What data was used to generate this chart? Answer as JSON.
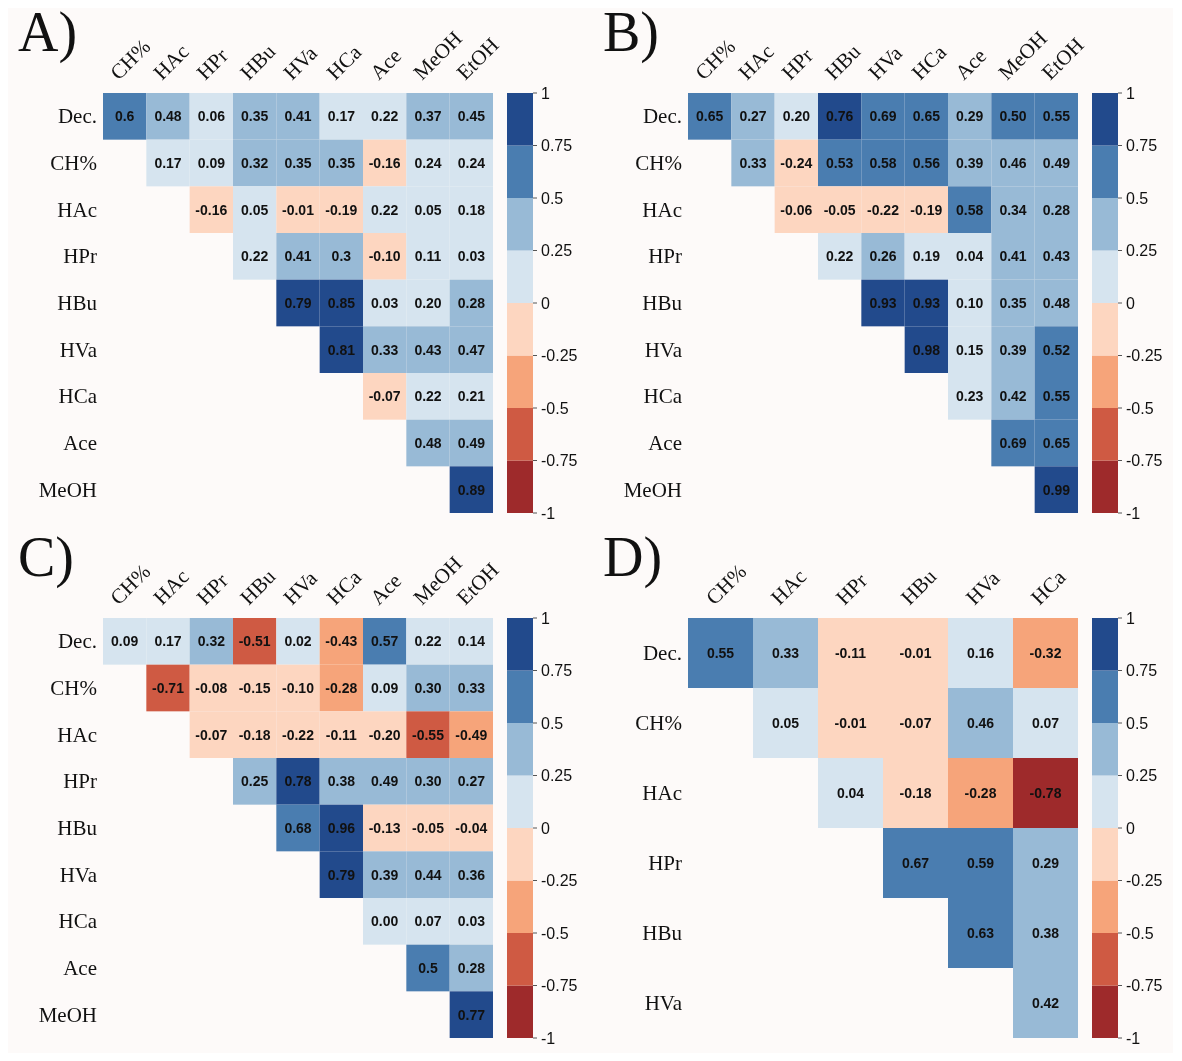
{
  "chart_data": [
    {
      "type": "heatmap",
      "data_labels": true,
      "title": "A)",
      "categories": [
        "CH%",
        "HAc",
        "HPr",
        "HBu",
        "HVa",
        "HCa",
        "Ace",
        "MeOH",
        "EtOH"
      ],
      "y_categories": [
        "Dec.",
        "CH%",
        "HAc",
        "HPr",
        "HBu",
        "HVa",
        "HCa",
        "Ace",
        "MeOH"
      ],
      "cells": [
        [
          0.6,
          0.48,
          0.06,
          0.35,
          0.41,
          0.17,
          0.22,
          0.37,
          0.45
        ],
        [
          null,
          0.17,
          0.09,
          0.32,
          0.35,
          0.35,
          -0.16,
          0.24,
          0.24
        ],
        [
          null,
          null,
          -0.16,
          0.05,
          -0.01,
          -0.19,
          0.22,
          0.05,
          0.18
        ],
        [
          null,
          null,
          null,
          0.22,
          0.41,
          0.3,
          -0.1,
          0.11,
          0.03
        ],
        [
          null,
          null,
          null,
          null,
          0.79,
          0.85,
          0.03,
          0.2,
          0.28
        ],
        [
          null,
          null,
          null,
          null,
          null,
          0.81,
          0.33,
          0.43,
          0.47
        ],
        [
          null,
          null,
          null,
          null,
          null,
          null,
          -0.07,
          0.22,
          0.21
        ],
        [
          null,
          null,
          null,
          null,
          null,
          null,
          null,
          0.48,
          0.49
        ],
        [
          null,
          null,
          null,
          null,
          null,
          null,
          null,
          null,
          0.89
        ]
      ],
      "cell_labels": [
        [
          "0.6",
          "0.48",
          "0.06",
          "0.35",
          "0.41",
          "0.17",
          "0.22",
          "0.37",
          "0.45"
        ],
        [
          null,
          "0.17",
          "0.09",
          "0.32",
          "0.35",
          "0.35",
          "-0.16",
          "0.24",
          "0.24"
        ],
        [
          null,
          null,
          "-0.16",
          "0.05",
          "-0.01",
          "-0.19",
          "0.22",
          "0.05",
          "0.18"
        ],
        [
          null,
          null,
          null,
          "0.22",
          "0.41",
          "0.3",
          "-0.10",
          "0.11",
          "0.03"
        ],
        [
          null,
          null,
          null,
          null,
          "0.79",
          "0.85",
          "0.03",
          "0.20",
          "0.28"
        ],
        [
          null,
          null,
          null,
          null,
          null,
          "0.81",
          "0.33",
          "0.43",
          "0.47"
        ],
        [
          null,
          null,
          null,
          null,
          null,
          null,
          "-0.07",
          "0.22",
          "0.21"
        ],
        [
          null,
          null,
          null,
          null,
          null,
          null,
          null,
          "0.48",
          "0.49"
        ],
        [
          null,
          null,
          null,
          null,
          null,
          null,
          null,
          null,
          "0.89"
        ]
      ],
      "clim": [
        -1,
        1
      ],
      "cticks": [
        -1,
        -0.75,
        -0.5,
        -0.25,
        0,
        0.25,
        0.5,
        0.75,
        1
      ]
    },
    {
      "type": "heatmap",
      "data_labels": true,
      "title": "B)",
      "categories": [
        "CH%",
        "HAc",
        "HPr",
        "HBu",
        "HVa",
        "HCa",
        "Ace",
        "MeOH",
        "EtOH"
      ],
      "y_categories": [
        "Dec.",
        "CH%",
        "HAc",
        "HPr",
        "HBu",
        "HVa",
        "HCa",
        "Ace",
        "MeOH"
      ],
      "cells": [
        [
          0.65,
          0.27,
          0.2,
          0.76,
          0.69,
          0.65,
          0.29,
          0.5,
          0.55
        ],
        [
          null,
          0.33,
          -0.24,
          0.53,
          0.58,
          0.56,
          0.39,
          0.46,
          0.49
        ],
        [
          null,
          null,
          -0.06,
          -0.05,
          -0.22,
          -0.19,
          0.58,
          0.34,
          0.28
        ],
        [
          null,
          null,
          null,
          0.22,
          0.26,
          0.19,
          0.04,
          0.41,
          0.43
        ],
        [
          null,
          null,
          null,
          null,
          0.93,
          0.93,
          0.1,
          0.35,
          0.48
        ],
        [
          null,
          null,
          null,
          null,
          null,
          0.98,
          0.15,
          0.39,
          0.52
        ],
        [
          null,
          null,
          null,
          null,
          null,
          null,
          0.23,
          0.42,
          0.55
        ],
        [
          null,
          null,
          null,
          null,
          null,
          null,
          null,
          0.69,
          0.65
        ],
        [
          null,
          null,
          null,
          null,
          null,
          null,
          null,
          null,
          0.99
        ]
      ],
      "cell_labels": [
        [
          "0.65",
          "0.27",
          "0.20",
          "0.76",
          "0.69",
          "0.65",
          "0.29",
          "0.50",
          "0.55"
        ],
        [
          null,
          "0.33",
          "-0.24",
          "0.53",
          "0.58",
          "0.56",
          "0.39",
          "0.46",
          "0.49"
        ],
        [
          null,
          null,
          "-0.06",
          "-0.05",
          "-0.22",
          "-0.19",
          "0.58",
          "0.34",
          "0.28"
        ],
        [
          null,
          null,
          null,
          "0.22",
          "0.26",
          "0.19",
          "0.04",
          "0.41",
          "0.43"
        ],
        [
          null,
          null,
          null,
          null,
          "0.93",
          "0.93",
          "0.10",
          "0.35",
          "0.48"
        ],
        [
          null,
          null,
          null,
          null,
          null,
          "0.98",
          "0.15",
          "0.39",
          "0.52"
        ],
        [
          null,
          null,
          null,
          null,
          null,
          null,
          "0.23",
          "0.42",
          "0.55"
        ],
        [
          null,
          null,
          null,
          null,
          null,
          null,
          null,
          "0.69",
          "0.65"
        ],
        [
          null,
          null,
          null,
          null,
          null,
          null,
          null,
          null,
          "0.99"
        ]
      ],
      "clim": [
        -1,
        1
      ],
      "cticks": [
        -1,
        -0.75,
        -0.5,
        -0.25,
        0,
        0.25,
        0.5,
        0.75,
        1
      ]
    },
    {
      "type": "heatmap",
      "data_labels": true,
      "title": "C)",
      "categories": [
        "CH%",
        "HAc",
        "HPr",
        "HBu",
        "HVa",
        "HCa",
        "Ace",
        "MeOH",
        "EtOH"
      ],
      "y_categories": [
        "Dec.",
        "CH%",
        "HAc",
        "HPr",
        "HBu",
        "HVa",
        "HCa",
        "Ace",
        "MeOH"
      ],
      "cells": [
        [
          0.09,
          0.17,
          0.32,
          -0.51,
          0.02,
          -0.43,
          0.57,
          0.22,
          0.14
        ],
        [
          null,
          -0.71,
          -0.08,
          -0.15,
          -0.1,
          -0.28,
          0.09,
          0.3,
          0.33
        ],
        [
          null,
          null,
          -0.07,
          -0.18,
          -0.22,
          -0.11,
          -0.2,
          -0.55,
          -0.49
        ],
        [
          null,
          null,
          null,
          0.25,
          0.78,
          0.38,
          0.49,
          0.3,
          0.27
        ],
        [
          null,
          null,
          null,
          null,
          0.68,
          0.96,
          -0.13,
          -0.05,
          -0.04
        ],
        [
          null,
          null,
          null,
          null,
          null,
          0.79,
          0.39,
          0.44,
          0.36
        ],
        [
          null,
          null,
          null,
          null,
          null,
          null,
          0,
          0.07,
          0.03
        ],
        [
          null,
          null,
          null,
          null,
          null,
          null,
          null,
          0.5,
          0.28
        ],
        [
          null,
          null,
          null,
          null,
          null,
          null,
          null,
          null,
          0.77
        ]
      ],
      "cell_labels": [
        [
          "0.09",
          "0.17",
          "0.32",
          "-0.51",
          "0.02",
          "-0.43",
          "0.57",
          "0.22",
          "0.14"
        ],
        [
          null,
          "-0.71",
          "-0.08",
          "-0.15",
          "-0.10",
          "-0.28",
          "0.09",
          "0.30",
          "0.33"
        ],
        [
          null,
          null,
          "-0.07",
          "-0.18",
          "-0.22",
          "-0.11",
          "-0.20",
          "-0.55",
          "-0.49"
        ],
        [
          null,
          null,
          null,
          "0.25",
          "0.78",
          "0.38",
          "0.49",
          "0.30",
          "0.27"
        ],
        [
          null,
          null,
          null,
          null,
          "0.68",
          "0.96",
          "-0.13",
          "-0.05",
          "-0.04"
        ],
        [
          null,
          null,
          null,
          null,
          null,
          "0.79",
          "0.39",
          "0.44",
          "0.36"
        ],
        [
          null,
          null,
          null,
          null,
          null,
          null,
          "0.00",
          "0.07",
          "0.03"
        ],
        [
          null,
          null,
          null,
          null,
          null,
          null,
          null,
          "0.5",
          "0.28"
        ],
        [
          null,
          null,
          null,
          null,
          null,
          null,
          null,
          null,
          "0.77"
        ]
      ],
      "clim": [
        -1,
        1
      ],
      "cticks": [
        -1,
        -0.75,
        -0.5,
        -0.25,
        0,
        0.25,
        0.5,
        0.75,
        1
      ]
    },
    {
      "type": "heatmap",
      "data_labels": true,
      "title": "D)",
      "categories": [
        "CH%",
        "HAc",
        "HPr",
        "HBu",
        "HVa",
        "HCa"
      ],
      "y_categories": [
        "Dec.",
        "CH%",
        "HAc",
        "HPr",
        "HBu",
        "HVa"
      ],
      "cells": [
        [
          0.55,
          0.33,
          -0.11,
          -0.01,
          0.16,
          -0.32
        ],
        [
          null,
          0.05,
          -0.01,
          -0.07,
          0.46,
          0.07
        ],
        [
          null,
          null,
          0.04,
          -0.18,
          -0.28,
          -0.78
        ],
        [
          null,
          null,
          null,
          0.67,
          0.59,
          0.29
        ],
        [
          null,
          null,
          null,
          null,
          0.63,
          0.38
        ],
        [
          null,
          null,
          null,
          null,
          null,
          0.42
        ]
      ],
      "clim": [
        -1,
        1
      ],
      "cticks": [
        -1,
        -0.75,
        -0.5,
        -0.25,
        0,
        0.25,
        0.5,
        0.75,
        1
      ]
    }
  ]
}
